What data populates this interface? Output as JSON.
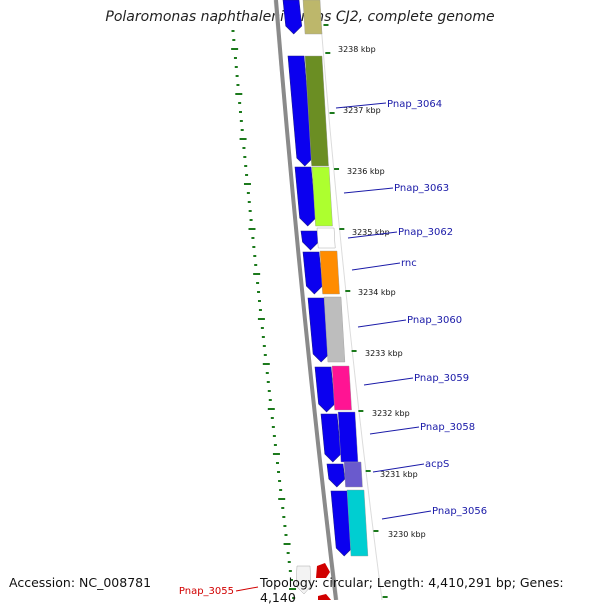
{
  "title": "Polaromonas naphthalenivorans CJ2, complete genome",
  "footer": {
    "accession": "Accession: NC_008781",
    "topology": "Topology: circular; Length: 4,410,291 bp; Genes: 4,140"
  },
  "colors": {
    "cds": "#0b00ef",
    "backbone": "#8a8a8a",
    "ticks": "#1c7a1c",
    "label": "#1a1aa8",
    "highlight": "#d10000"
  },
  "kbp_ticks": [
    "3238 kbp",
    "3237 kbp",
    "3236 kbp",
    "3235 kbp",
    "3234 kbp",
    "3233 kbp",
    "3232 kbp",
    "3231 kbp",
    "3230 kbp"
  ],
  "genes": [
    {
      "label": "Pnap_3064",
      "color": "#6b8e23"
    },
    {
      "label": "Pnap_3063",
      "color": "#adff2f"
    },
    {
      "label": "Pnap_3062",
      "color": "#ffffff"
    },
    {
      "label": "rnc",
      "color": "#ff8c00"
    },
    {
      "label": "Pnap_3060",
      "color": "#bdbdbd"
    },
    {
      "label": "Pnap_3059",
      "color": "#ff1493"
    },
    {
      "label": "Pnap_3058",
      "color": "#0b00ef"
    },
    {
      "label": "acpS",
      "color": "#6a5acd"
    },
    {
      "label": "Pnap_3056",
      "color": "#00ced1"
    },
    {
      "label": "Pnap_3055",
      "color": "#ff0000"
    }
  ]
}
